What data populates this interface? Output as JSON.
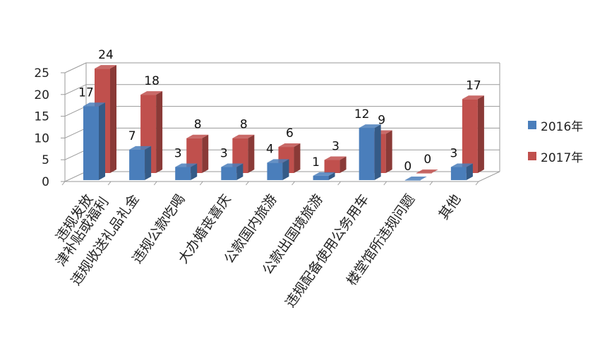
{
  "chart_data": {
    "type": "bar",
    "style": "3d-clustered-column",
    "categories": [
      "违规发放\n津补贴或福利",
      "违规收送礼品礼金",
      "违规公款吃喝",
      "大办婚丧喜庆",
      "公款国内旅游",
      "公款出国境旅游",
      "违规配备使用公务用车",
      "楼堂馆所违规问题",
      "其他"
    ],
    "series": [
      {
        "name": "2016年",
        "color": "#4a7ebb",
        "values": [
          17,
          7,
          3,
          3,
          4,
          1,
          12,
          0,
          3
        ]
      },
      {
        "name": "2017年",
        "color": "#c0504d",
        "values": [
          24,
          18,
          8,
          8,
          6,
          3,
          9,
          0,
          17
        ]
      }
    ],
    "y_ticks": [
      "0",
      "5",
      "10",
      "15",
      "20",
      "25"
    ],
    "ylim": [
      0,
      25
    ],
    "grid": true,
    "legend_position": "right"
  }
}
